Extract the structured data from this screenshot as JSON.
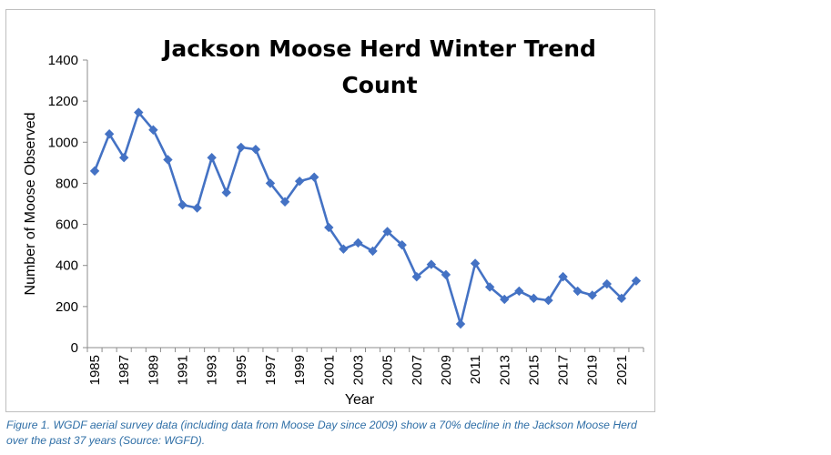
{
  "chart_data": {
    "type": "line",
    "title_lines": [
      "Jackson Moose Herd Winter Trend",
      "Count"
    ],
    "xlabel": "Year",
    "ylabel": "Number of Moose Observed",
    "ylim": [
      0,
      1400
    ],
    "yticks": [
      0,
      200,
      400,
      600,
      800,
      1000,
      1200,
      1400
    ],
    "x_tick_labels": [
      "1985",
      "1987",
      "1989",
      "1991",
      "1993",
      "1995",
      "1997",
      "1999",
      "2001",
      "2003",
      "2005",
      "2007",
      "2009",
      "2011",
      "2013",
      "2015",
      "2017",
      "2019",
      "2021"
    ],
    "grid": false,
    "legend": "none",
    "series": [
      {
        "color": "#4472c4",
        "marker": "diamond",
        "x": [
          1985,
          1986,
          1987,
          1988,
          1989,
          1990,
          1991,
          1992,
          1993,
          1994,
          1995,
          1996,
          1997,
          1998,
          1999,
          2000,
          2001,
          2002,
          2003,
          2004,
          2005,
          2006,
          2007,
          2008,
          2009,
          2010,
          2011,
          2012,
          2013,
          2014,
          2015,
          2016,
          2017,
          2018,
          2019,
          2020,
          2021,
          2022
        ],
        "values": [
          860,
          1040,
          925,
          1145,
          1060,
          915,
          695,
          680,
          925,
          755,
          975,
          965,
          800,
          710,
          810,
          830,
          585,
          480,
          510,
          470,
          565,
          500,
          345,
          405,
          355,
          115,
          410,
          295,
          235,
          275,
          240,
          230,
          345,
          275,
          255,
          310,
          240,
          325
        ]
      }
    ]
  },
  "caption": {
    "line1": "Figure 1. WGDF aerial survey data (including data from Moose Day since 2009) show a 70% decline in the Jackson Moose Herd",
    "line2": "over the past 37 years (Source: WGFD)."
  }
}
